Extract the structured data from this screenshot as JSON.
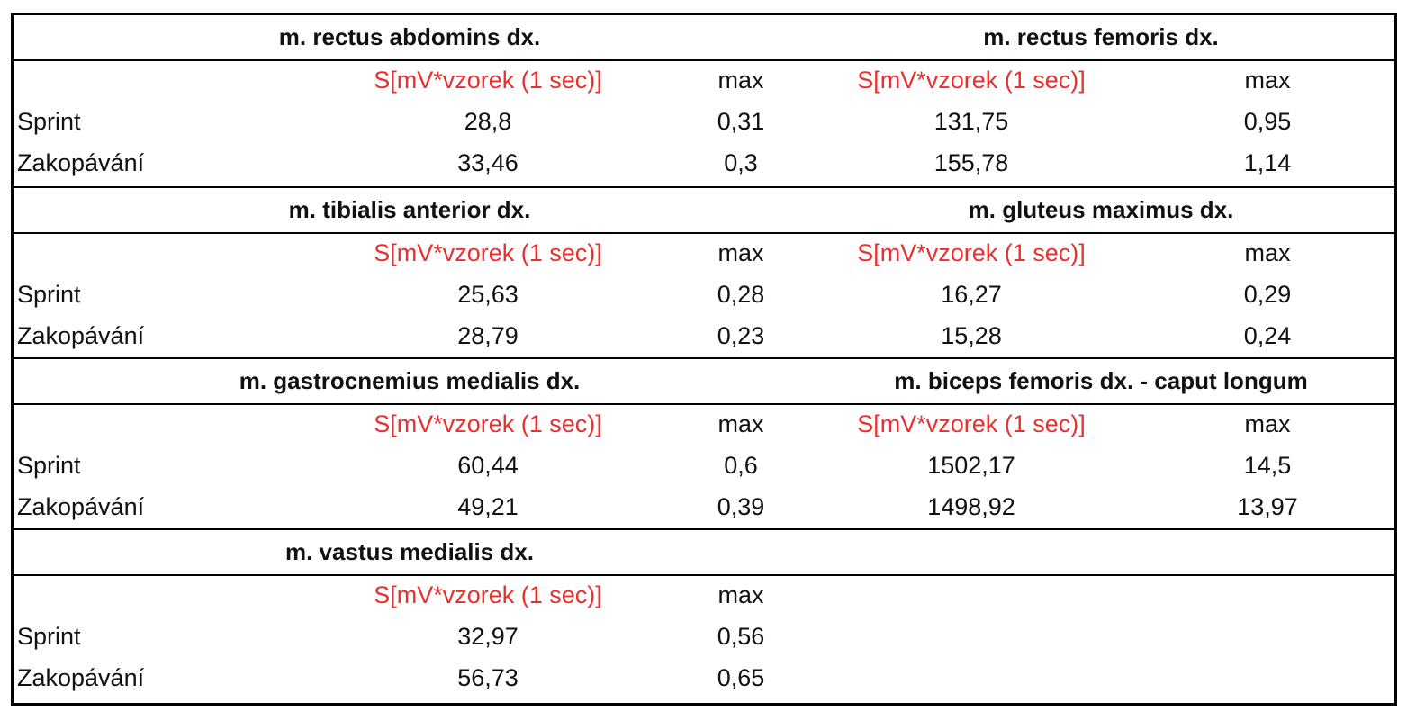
{
  "table": {
    "metric_label": "S[mV*vzorek (1 sec)]",
    "max_label": "max",
    "row_labels": [
      "Sprint",
      "Zakopávání"
    ],
    "sections": [
      {
        "muscles": [
          "m. rectus abdomins dx.",
          "m. rectus femoris dx."
        ],
        "rows": [
          {
            "label": "Sprint",
            "m1_s": "28,8",
            "m1_max": "0,31",
            "m2_s": "131,75",
            "m2_max": "0,95"
          },
          {
            "label": "Zakopávání",
            "m1_s": "33,46",
            "m1_max": "0,3",
            "m2_s": "155,78",
            "m2_max": "1,14"
          }
        ]
      },
      {
        "muscles": [
          "m. tibialis anterior dx.",
          "m. gluteus maximus dx."
        ],
        "rows": [
          {
            "label": "Sprint",
            "m1_s": "25,63",
            "m1_max": "0,28",
            "m2_s": "16,27",
            "m2_max": "0,29"
          },
          {
            "label": "Zakopávání",
            "m1_s": "28,79",
            "m1_max": "0,23",
            "m2_s": "15,28",
            "m2_max": "0,24"
          }
        ]
      },
      {
        "muscles": [
          "m. gastrocnemius medialis dx.",
          "m. biceps femoris dx. - caput longum"
        ],
        "rows": [
          {
            "label": "Sprint",
            "m1_s": "60,44",
            "m1_max": "0,6",
            "m2_s": "1502,17",
            "m2_max": "14,5"
          },
          {
            "label": "Zakopávání",
            "m1_s": "49,21",
            "m1_max": "0,39",
            "m2_s": "1498,92",
            "m2_max": "13,97"
          }
        ]
      },
      {
        "muscles": [
          "m. vastus medialis dx."
        ],
        "rows": [
          {
            "label": "Sprint",
            "m1_s": "32,97",
            "m1_max": "0,56"
          },
          {
            "label": "Zakopávání",
            "m1_s": "56,73",
            "m1_max": "0,65"
          }
        ]
      }
    ]
  },
  "colors": {
    "metric_label": "#e8302f",
    "border": "#000000",
    "text": "#111111"
  }
}
